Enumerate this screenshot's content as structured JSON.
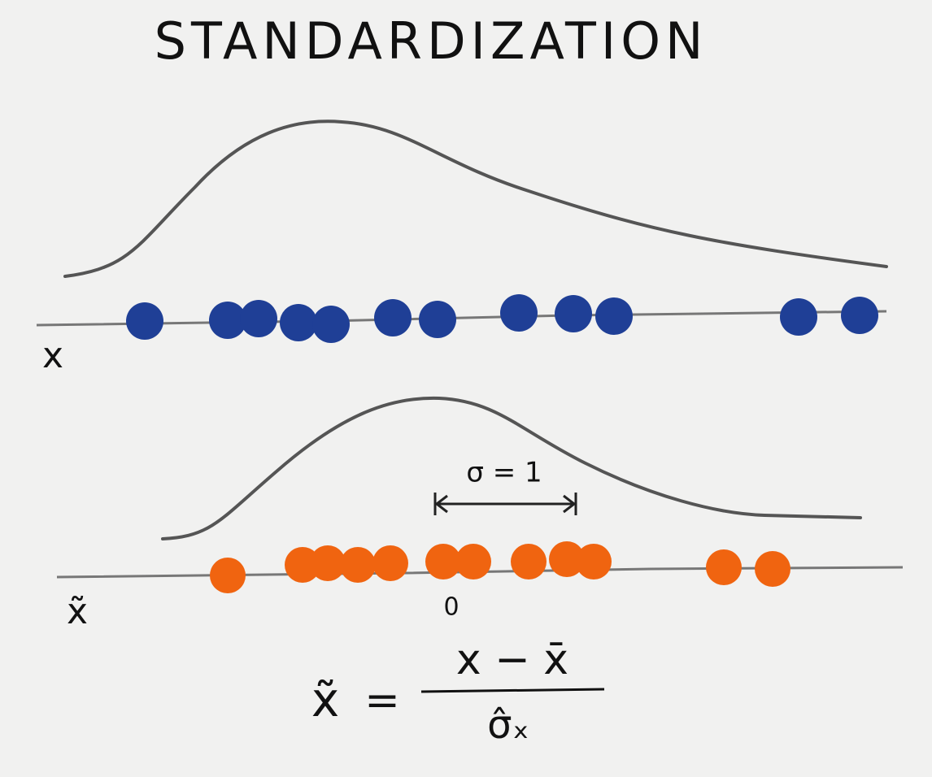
{
  "title": "STANDARDIZATION",
  "raw_axis": {
    "label": "x"
  },
  "standardized_axis": {
    "label": "x̃",
    "spread_annotation": "σ = 1",
    "origin_label": "0"
  },
  "formula": {
    "lhs": "x̃",
    "equals": "=",
    "numerator": "x − x̄",
    "denominator": "σ̂ₓ"
  }
}
